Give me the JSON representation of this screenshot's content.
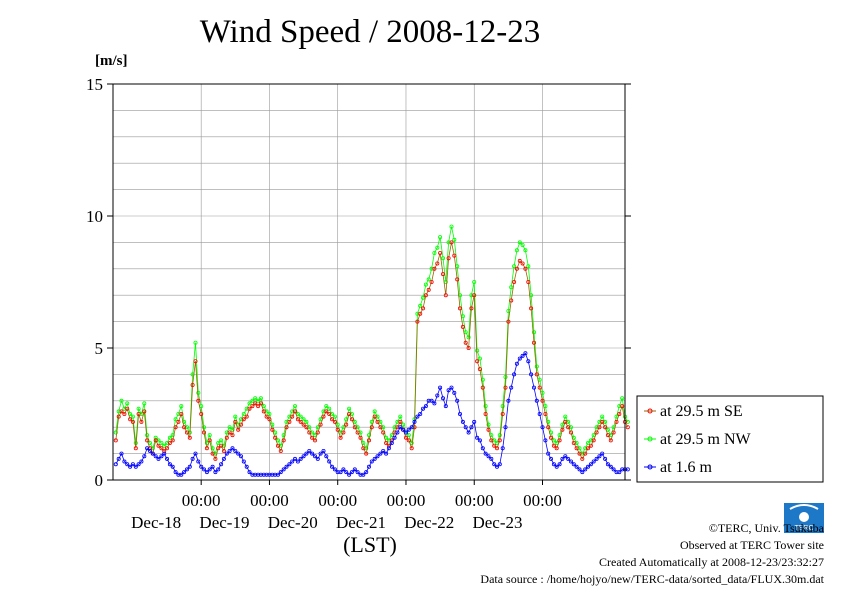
{
  "title": "Wind Speed / 2008-12-23",
  "y_unit": "[m/s]",
  "x_axis_label": "(LST)",
  "footer": {
    "credit": "©TERC, Univ. Tsukuba",
    "site": "Observed at TERC Tower site",
    "created": "Created Automatically at 2008-12-23/23:32:27",
    "source": "Data source : /home/hojyo/new/TERC-data/sorted_data/FLUX.30m.dat"
  },
  "logo_text": "TERC",
  "colors": {
    "se": "#ff0000",
    "se_line": "#996600",
    "nw": "#00ff00",
    "low": "#0000ff",
    "grid": "#999999"
  },
  "chart_data": {
    "type": "line",
    "title": "Wind Speed / 2008-12-23",
    "ylabel": "[m/s]",
    "xlabel": "(LST)",
    "ylim": [
      0,
      15
    ],
    "y_ticks": [
      0,
      5,
      10,
      15
    ],
    "x_range_hours": [
      -31,
      149
    ],
    "x_tick_labels": [
      {
        "time": "00:00",
        "date": "Dec-18",
        "hour": 0
      },
      {
        "time": "00:00",
        "date": "Dec-19",
        "hour": 24
      },
      {
        "time": "00:00",
        "date": "Dec-20",
        "hour": 48
      },
      {
        "time": "00:00",
        "date": "Dec-21",
        "hour": 72
      },
      {
        "time": "00:00",
        "date": "Dec-22",
        "hour": 96
      },
      {
        "time": "00:00",
        "date": "Dec-23",
        "hour": 120
      }
    ],
    "grid": true,
    "legend_position": "right",
    "interval_hours": 1,
    "start_hour": -30,
    "series": [
      {
        "name": "at 29.5 m SE",
        "values": [
          1.5,
          2.4,
          2.6,
          2.5,
          2.7,
          2.3,
          2.2,
          1.2,
          2.5,
          2.2,
          2.6,
          1.5,
          1.2,
          1.0,
          1.5,
          1.3,
          1.2,
          1.1,
          1.2,
          1.4,
          1.5,
          2.0,
          2.2,
          2.5,
          2.0,
          1.8,
          1.6,
          3.6,
          4.5,
          3.0,
          2.5,
          1.8,
          1.2,
          1.5,
          1.0,
          0.8,
          1.2,
          1.3,
          1.1,
          1.6,
          1.8,
          1.7,
          2.2,
          1.9,
          2.1,
          2.3,
          2.4,
          2.7,
          2.8,
          2.9,
          2.8,
          2.9,
          2.6,
          2.4,
          2.3,
          1.9,
          1.6,
          1.3,
          1.1,
          1.5,
          2.0,
          2.2,
          2.4,
          2.6,
          2.3,
          2.2,
          2.1,
          2.0,
          1.8,
          1.6,
          1.5,
          1.8,
          2.1,
          2.4,
          2.6,
          2.5,
          2.3,
          2.2,
          1.9,
          1.6,
          1.8,
          2.1,
          2.5,
          2.3,
          2.0,
          1.8,
          1.6,
          1.2,
          1.0,
          1.5,
          2.0,
          2.4,
          2.2,
          2.0,
          1.8,
          1.4,
          1.3,
          1.5,
          1.8,
          2.0,
          2.2,
          1.9,
          1.6,
          1.5,
          1.2,
          2.0,
          6.0,
          6.3,
          6.5,
          7.0,
          7.2,
          7.5,
          8.0,
          8.2,
          8.6,
          7.8,
          7.0,
          8.4,
          9.0,
          8.5,
          7.6,
          6.5,
          5.8,
          5.2,
          5.0,
          6.5,
          7.0,
          4.5,
          4.2,
          3.5,
          2.5,
          1.9,
          1.5,
          1.3,
          1.2,
          1.5,
          2.5,
          3.5,
          6.0,
          6.8,
          7.5,
          8.0,
          8.3,
          8.2,
          8.0,
          7.5,
          6.5,
          5.2,
          4.0,
          3.5,
          3.0,
          2.5,
          2.0,
          1.6,
          1.3,
          1.2,
          1.5,
          1.9,
          2.2,
          2.0,
          1.8,
          1.4,
          1.2,
          1.0,
          0.8,
          1.0,
          1.2,
          1.3,
          1.5,
          1.8,
          2.0,
          2.2,
          2.0,
          1.7,
          1.5,
          1.8,
          2.2,
          2.5,
          2.8,
          2.2,
          2.0
        ]
      },
      {
        "name": "at 29.5 m NW",
        "values": [
          1.8,
          2.6,
          3.0,
          2.7,
          2.9,
          2.5,
          2.4,
          1.4,
          2.7,
          2.5,
          2.9,
          1.7,
          1.4,
          1.2,
          1.6,
          1.5,
          1.4,
          1.3,
          1.4,
          1.6,
          1.7,
          2.3,
          2.5,
          2.8,
          2.2,
          2.0,
          1.8,
          4.0,
          5.2,
          3.3,
          2.8,
          2.0,
          1.4,
          1.7,
          1.2,
          1.0,
          1.4,
          1.5,
          1.3,
          1.8,
          2.0,
          1.9,
          2.4,
          2.1,
          2.3,
          2.5,
          2.7,
          2.9,
          3.0,
          3.1,
          3.0,
          3.1,
          2.8,
          2.6,
          2.5,
          2.1,
          1.8,
          1.5,
          1.3,
          1.7,
          2.2,
          2.4,
          2.6,
          2.8,
          2.5,
          2.4,
          2.3,
          2.2,
          2.0,
          1.8,
          1.7,
          2.0,
          2.3,
          2.6,
          2.8,
          2.7,
          2.5,
          2.4,
          2.1,
          1.8,
          2.0,
          2.3,
          2.7,
          2.5,
          2.2,
          2.0,
          1.8,
          1.4,
          1.2,
          1.7,
          2.2,
          2.6,
          2.4,
          2.2,
          2.0,
          1.6,
          1.5,
          1.7,
          2.0,
          2.2,
          2.4,
          2.1,
          1.8,
          1.7,
          1.4,
          2.3,
          6.3,
          6.6,
          6.9,
          7.4,
          7.6,
          8.0,
          8.6,
          8.8,
          9.2,
          8.4,
          7.5,
          9.0,
          9.6,
          9.1,
          8.1,
          7.0,
          6.2,
          5.6,
          5.4,
          7.0,
          7.5,
          4.9,
          4.6,
          3.8,
          2.8,
          2.1,
          1.7,
          1.5,
          1.4,
          1.7,
          2.8,
          3.9,
          6.4,
          7.3,
          8.1,
          8.7,
          9.0,
          8.9,
          8.7,
          8.1,
          7.0,
          5.6,
          4.3,
          3.8,
          3.3,
          2.8,
          2.2,
          1.8,
          1.5,
          1.4,
          1.7,
          2.1,
          2.4,
          2.2,
          2.0,
          1.6,
          1.4,
          1.2,
          1.0,
          1.2,
          1.4,
          1.5,
          1.7,
          2.0,
          2.2,
          2.4,
          2.2,
          1.9,
          1.7,
          2.0,
          2.4,
          2.8,
          3.1,
          2.4,
          2.2
        ]
      },
      {
        "name": "at 1.6 m",
        "values": [
          0.6,
          0.8,
          1.0,
          0.7,
          0.6,
          0.5,
          0.6,
          0.5,
          0.6,
          0.7,
          0.9,
          1.2,
          1.1,
          1.0,
          0.9,
          0.8,
          0.9,
          1.0,
          0.8,
          0.6,
          0.5,
          0.3,
          0.2,
          0.2,
          0.3,
          0.4,
          0.5,
          0.8,
          1.0,
          0.7,
          0.5,
          0.4,
          0.3,
          0.4,
          0.5,
          0.3,
          0.4,
          0.6,
          0.8,
          1.0,
          1.1,
          1.2,
          1.1,
          1.0,
          0.9,
          0.7,
          0.5,
          0.3,
          0.2,
          0.2,
          0.2,
          0.2,
          0.2,
          0.2,
          0.2,
          0.2,
          0.2,
          0.2,
          0.3,
          0.4,
          0.5,
          0.6,
          0.7,
          0.8,
          0.7,
          0.8,
          0.9,
          1.0,
          1.1,
          1.0,
          0.9,
          0.8,
          1.0,
          1.1,
          0.9,
          0.7,
          0.5,
          0.4,
          0.3,
          0.3,
          0.4,
          0.3,
          0.2,
          0.3,
          0.4,
          0.3,
          0.2,
          0.2,
          0.3,
          0.5,
          0.7,
          0.8,
          0.9,
          1.0,
          1.1,
          1.0,
          1.2,
          1.4,
          1.6,
          1.8,
          2.0,
          1.9,
          1.8,
          1.9,
          2.0,
          2.2,
          2.4,
          2.5,
          2.7,
          2.8,
          3.0,
          3.0,
          2.9,
          3.2,
          3.5,
          3.1,
          2.8,
          3.4,
          3.5,
          3.3,
          3.0,
          2.5,
          2.2,
          2.0,
          1.8,
          2.0,
          2.2,
          1.6,
          1.5,
          1.2,
          1.0,
          0.9,
          0.8,
          0.6,
          0.5,
          0.6,
          1.2,
          2.0,
          3.0,
          3.5,
          4.0,
          4.4,
          4.6,
          4.7,
          4.8,
          4.5,
          4.0,
          3.5,
          3.0,
          2.5,
          2.0,
          1.5,
          1.0,
          0.8,
          0.6,
          0.5,
          0.6,
          0.8,
          0.9,
          0.8,
          0.7,
          0.6,
          0.5,
          0.4,
          0.3,
          0.4,
          0.5,
          0.6,
          0.7,
          0.8,
          0.9,
          1.0,
          0.8,
          0.6,
          0.5,
          0.4,
          0.3,
          0.3,
          0.4,
          0.4,
          0.4
        ]
      }
    ]
  }
}
